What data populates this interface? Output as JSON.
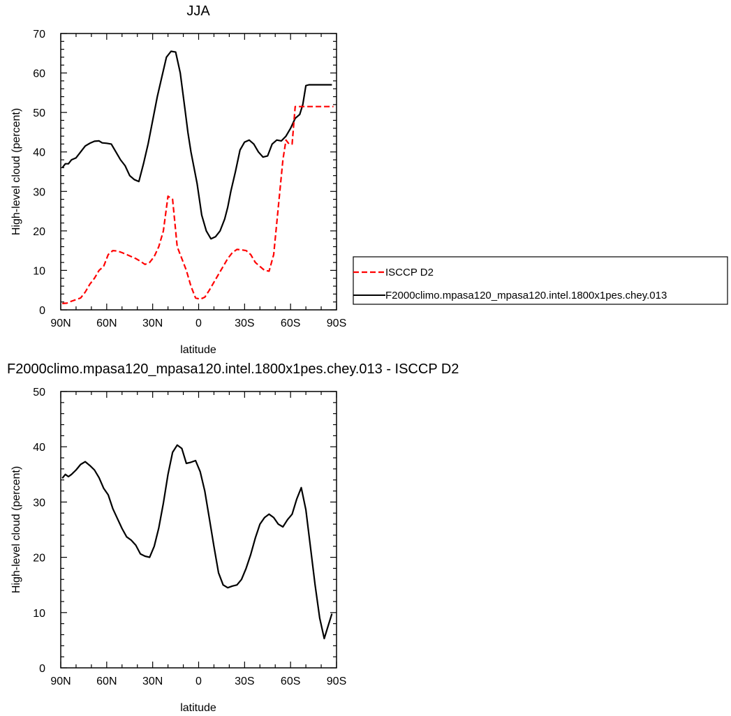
{
  "chart_data": [
    {
      "type": "line",
      "title": "JJA",
      "xlabel": "latitude",
      "ylabel": "High-level cloud (percent)",
      "xlim": [
        90,
        -90
      ],
      "ylim": [
        0,
        70
      ],
      "x_ticks": [
        {
          "value": 90,
          "label": "90N"
        },
        {
          "value": 60,
          "label": "60N"
        },
        {
          "value": 30,
          "label": "30N"
        },
        {
          "value": 0,
          "label": "0"
        },
        {
          "value": -30,
          "label": "30S"
        },
        {
          "value": -60,
          "label": "60S"
        },
        {
          "value": -90,
          "label": "90S"
        }
      ],
      "y_ticks": [
        0,
        10,
        20,
        30,
        40,
        50,
        60,
        70
      ],
      "legend": {
        "placement": "right",
        "entries": [
          {
            "label": "ISCCP D2",
            "color": "#ff0000",
            "dash": "dashed"
          },
          {
            "label": "F2000climo.mpasa120_mpasa120.intel.1800x1pes.chey.013",
            "color": "#000000",
            "dash": "solid"
          }
        ]
      },
      "series": [
        {
          "name": "F2000climo.mpasa120_mpasa120.intel.1800x1pes.chey.013",
          "color": "#000000",
          "dash": "solid",
          "x": [
            89,
            87,
            85,
            83,
            80,
            77,
            74,
            71,
            68,
            65,
            63,
            60,
            57,
            54,
            51,
            48,
            45,
            42,
            39,
            36,
            33,
            30,
            27,
            24,
            21,
            18,
            15,
            12,
            9,
            7,
            5,
            3,
            1,
            -2,
            -5,
            -8,
            -11,
            -14,
            -17,
            -19,
            -21,
            -24,
            -27,
            -30,
            -33,
            -36,
            -39,
            -42,
            -45,
            -48,
            -51,
            -54,
            -57,
            -60,
            -63,
            -66,
            -68,
            -70,
            -72,
            -75,
            -78,
            -80,
            -83,
            -85,
            -87
          ],
          "values": [
            36.0,
            37.0,
            37.0,
            38.0,
            38.5,
            40.0,
            41.5,
            42.2,
            42.7,
            42.8,
            42.3,
            42.2,
            42.0,
            40.0,
            38.0,
            36.5,
            34.0,
            33.0,
            32.5,
            37.0,
            42.0,
            48.0,
            54.0,
            59.0,
            64.0,
            65.5,
            65.3,
            60.0,
            51.0,
            45.0,
            40.0,
            36.0,
            32.0,
            24.0,
            20.0,
            18.0,
            18.5,
            20.0,
            23.0,
            26.0,
            30.0,
            35.0,
            40.5,
            42.5,
            43.0,
            42.0,
            40.0,
            38.7,
            39.0,
            42.0,
            43.0,
            42.8,
            44.0,
            46.0,
            48.5,
            49.5,
            52.0,
            56.8,
            57.0,
            57.0,
            57.0,
            57.0,
            57.0,
            57.0,
            57.0
          ]
        },
        {
          "name": "ISCCP D2",
          "color": "#ff0000",
          "dash": "dashed",
          "x": [
            89,
            86,
            83,
            80,
            77,
            74,
            71,
            68,
            65,
            62,
            59,
            56,
            53,
            50,
            47,
            44,
            41,
            38,
            35,
            32,
            29,
            26,
            23,
            20,
            17,
            14,
            11,
            8,
            5,
            2,
            -1,
            -4,
            -7,
            -10,
            -13,
            -16,
            -19,
            -22,
            -25,
            -28,
            -31,
            -34,
            -37,
            -40,
            -43,
            -46,
            -49,
            -52,
            -55,
            -57,
            -59,
            -61,
            -63,
            -65,
            -67,
            -70,
            -73,
            -76,
            -78,
            -80,
            -82,
            -84,
            -86,
            -88
          ],
          "values": [
            1.6,
            1.7,
            2.2,
            2.6,
            3.0,
            4.5,
            6.5,
            8.0,
            10.0,
            11.0,
            14.0,
            15.0,
            14.9,
            14.5,
            14.0,
            13.5,
            13.0,
            12.3,
            11.5,
            12.0,
            13.5,
            16.0,
            20.0,
            28.8,
            28.0,
            16.0,
            13.0,
            10.0,
            6.0,
            3.0,
            2.7,
            3.2,
            5.0,
            7.0,
            9.0,
            11.0,
            13.0,
            14.5,
            15.3,
            15.2,
            15.0,
            14.0,
            12.0,
            11.0,
            10.0,
            9.8,
            14.0,
            26.0,
            38.0,
            43.0,
            42.0,
            42.0,
            51.5,
            51.5,
            51.5,
            51.5,
            51.5,
            51.5,
            51.5,
            51.5,
            51.5,
            51.5,
            51.5,
            51.5
          ]
        }
      ]
    },
    {
      "type": "line",
      "title": "F2000climo.mpasa120_mpasa120.intel.1800x1pes.chey.013 - ISCCP D2",
      "xlabel": "latitude",
      "ylabel": "High-level cloud (percent)",
      "xlim": [
        90,
        -90
      ],
      "ylim": [
        0,
        50
      ],
      "x_ticks": [
        {
          "value": 90,
          "label": "90N"
        },
        {
          "value": 60,
          "label": "60N"
        },
        {
          "value": 30,
          "label": "30N"
        },
        {
          "value": 0,
          "label": "0"
        },
        {
          "value": -30,
          "label": "30S"
        },
        {
          "value": -60,
          "label": "60S"
        },
        {
          "value": -90,
          "label": "90S"
        }
      ],
      "y_ticks": [
        0,
        10,
        20,
        30,
        40,
        50
      ],
      "series": [
        {
          "name": "F2000climo.mpasa120_mpasa120.intel.1800x1pes.chey.013 - ISCCP D2",
          "color": "#000000",
          "dash": "solid",
          "x": [
            89,
            87,
            85,
            83,
            80,
            77,
            74,
            71,
            68,
            65,
            62,
            59,
            56,
            53,
            50,
            47,
            44,
            41,
            38,
            35,
            32,
            29,
            26,
            23,
            20,
            17,
            14,
            11,
            8,
            5,
            2,
            -1,
            -4,
            -7,
            -10,
            -13,
            -16,
            -19,
            -22,
            -25,
            -28,
            -31,
            -34,
            -37,
            -40,
            -43,
            -46,
            -49,
            -52,
            -55,
            -58,
            -61,
            -64,
            -67,
            -70,
            -73,
            -76,
            -79,
            -82,
            -85,
            -87
          ],
          "values": [
            34.3,
            35.0,
            34.6,
            35.0,
            35.8,
            36.8,
            37.3,
            36.6,
            35.8,
            34.4,
            32.5,
            31.3,
            28.8,
            27.0,
            25.2,
            23.7,
            23.1,
            22.2,
            20.6,
            20.2,
            20.0,
            22.0,
            25.3,
            29.8,
            35.0,
            39.0,
            40.3,
            39.7,
            37.0,
            37.2,
            37.5,
            35.5,
            32.0,
            27.0,
            22.0,
            17.2,
            15.0,
            14.5,
            14.8,
            15.0,
            16.0,
            18.0,
            20.5,
            23.5,
            26.0,
            27.2,
            27.8,
            27.2,
            26.0,
            25.5,
            26.8,
            27.8,
            30.5,
            32.6,
            28.6,
            21.8,
            15.0,
            9.0,
            5.3,
            8.0,
            9.8
          ]
        }
      ]
    }
  ]
}
